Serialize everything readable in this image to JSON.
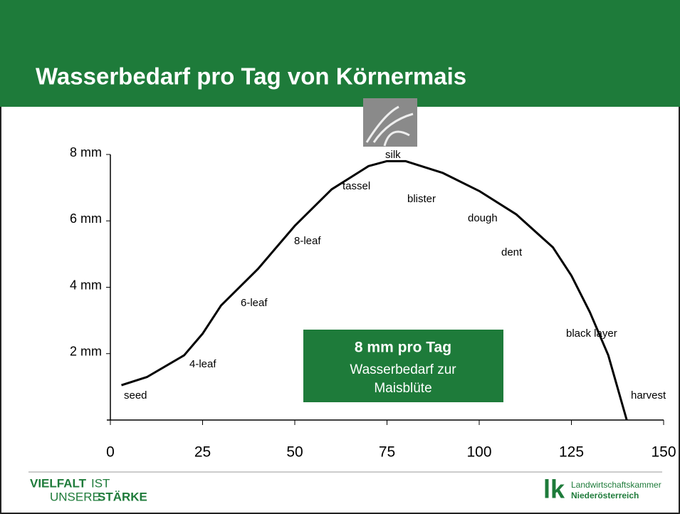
{
  "header": {
    "title": "Wasserbedarf pro Tag von Körnermais"
  },
  "chart_data": {
    "type": "line",
    "x": [
      3,
      10,
      20,
      25,
      30,
      40,
      50,
      60,
      70,
      75,
      80,
      90,
      100,
      110,
      120,
      125,
      130,
      135,
      140
    ],
    "series": [
      {
        "color": "#000000",
        "values": [
          1.05,
          1.3,
          1.95,
          2.6,
          3.45,
          4.55,
          5.85,
          6.95,
          7.65,
          7.8,
          7.8,
          7.45,
          6.9,
          6.2,
          5.2,
          4.35,
          3.25,
          1.95,
          0
        ]
      }
    ],
    "xlim": [
      0,
      150
    ],
    "xticks": [
      0,
      25,
      50,
      75,
      100,
      125,
      150
    ],
    "ylim": [
      0,
      8
    ],
    "yticks": [
      {
        "value": 2,
        "label": "2 mm"
      },
      {
        "value": 4,
        "label": "4 mm"
      },
      {
        "value": 6,
        "label": "6 mm"
      },
      {
        "value": 8,
        "label": "8 mm"
      }
    ],
    "annotations": [
      "seed",
      "4-leaf",
      "6-leaf",
      "8-leaf",
      "tassel",
      "silk",
      "blister",
      "dough",
      "dent",
      "black layer",
      "harvest"
    ]
  },
  "callout": {
    "headline": "8 mm pro Tag",
    "lines": [
      "Wasserbedarf zur",
      "Maisblüte"
    ]
  },
  "footer": {
    "slogan": [
      "VIELFALT",
      "IST",
      "UNSERE",
      "STÄRKE"
    ],
    "logo_mark": "lk",
    "organization": [
      "Landwirtschaftskammer",
      "Niederösterreich"
    ]
  }
}
